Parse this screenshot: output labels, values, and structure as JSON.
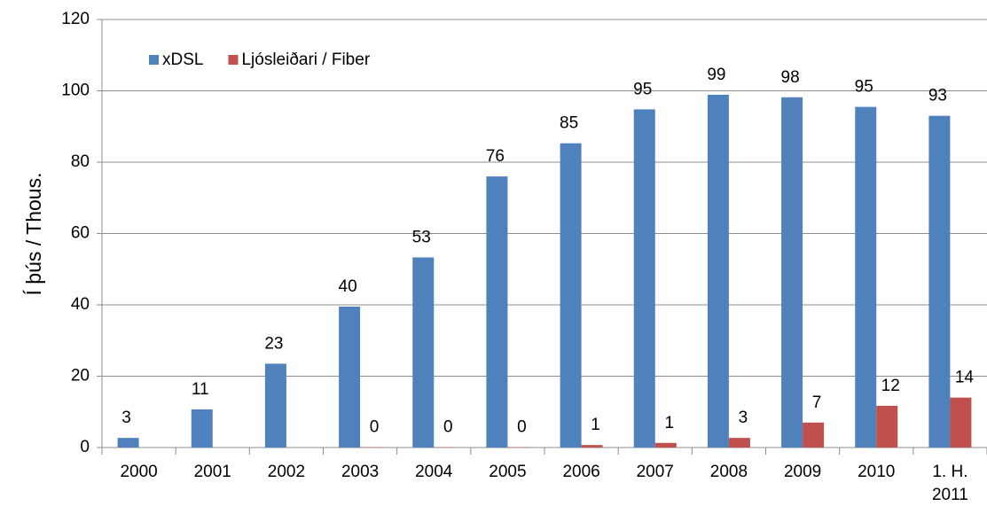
{
  "chart_data": {
    "type": "bar",
    "y_label": "Í þús / Thous.",
    "categories": [
      "2000",
      "2001",
      "2002",
      "2003",
      "2004",
      "2005",
      "2006",
      "2007",
      "2008",
      "2009",
      "2010",
      "1. H. 2011"
    ],
    "series": [
      {
        "name": "xDSL",
        "color": "#4f81bd",
        "values": [
          2.7,
          10.7,
          23.5,
          39.5,
          53.3,
          76,
          85.3,
          94.8,
          98.9,
          98.2,
          95.5,
          93
        ],
        "value_labels": [
          "3",
          "11",
          "23",
          "40",
          "53",
          "76",
          "85",
          "95",
          "99",
          "98",
          "95",
          "93"
        ]
      },
      {
        "name": "Ljósleiðari / Fiber",
        "color": "#c0504d",
        "values": [
          null,
          null,
          null,
          0.1,
          0.1,
          0.1,
          0.7,
          1.3,
          2.7,
          7,
          11.7,
          14
        ],
        "value_labels": [
          null,
          null,
          null,
          "0",
          "0",
          "0",
          "1",
          "1",
          "3",
          "7",
          "12",
          "14"
        ]
      }
    ],
    "ylim": [
      0,
      120
    ],
    "yticks": [
      0,
      20,
      40,
      60,
      80,
      100,
      120
    ],
    "grid": true,
    "legend": "top-left"
  }
}
